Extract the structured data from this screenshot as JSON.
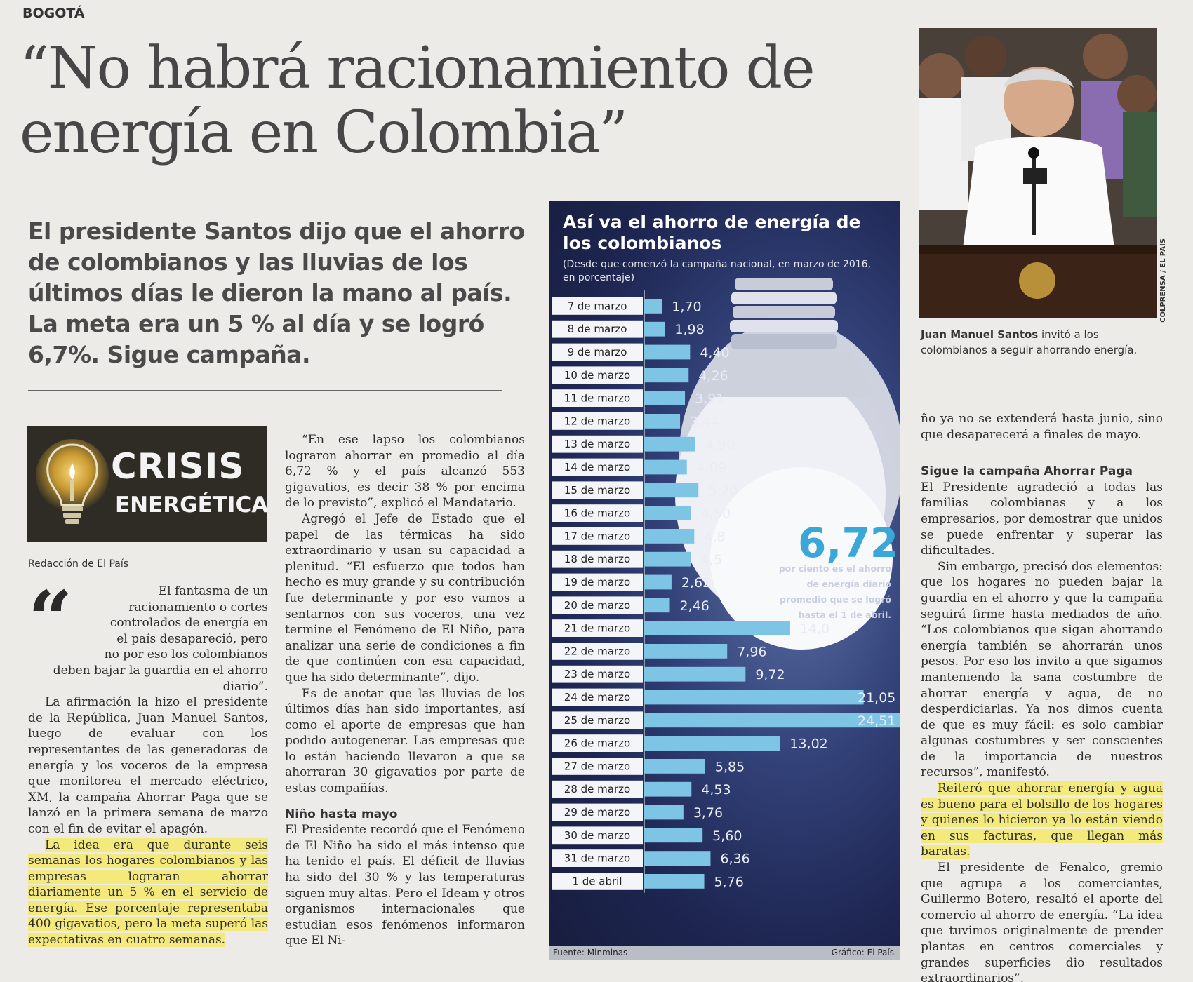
{
  "section": "BOGOTÁ",
  "headline": "“No habrá racionamiento de energía en Colombia”",
  "subhead": "El presidente Santos dijo que el ahorro de colombianos y las lluvias de los últimos días le dieron la mano al país. La meta era un 5 % al día y se logró 6,7%. Sigue campaña.",
  "crisis": {
    "line1": "CRISIS",
    "line2": "ENERGÉTICA"
  },
  "byline": "Redacción de El País",
  "col1": {
    "lead": "El fantasma de un racionamiento o cortes controlados de energía en el país desapareció, pero no por eso los colombianos deben bajar la guardia en el ahorro diario”.",
    "p2": "La afirmación la hizo el presidente de la República, Juan Manuel Santos, luego de evaluar con los representantes de las generadoras de energía y los voceros de la empresa que monitorea el mercado eléctrico, XM, la campaña Ahorrar Paga que se lanzó en la primera semana de marzo con el fin de evitar el apagón.",
    "p3": "La idea era que durante seis semanas los hogares colombianos y las empresas lograran ahorrar diariamente un 5 % en el servicio de energía. Ese porcentaje representaba 400 gigavatios, pero la meta superó las expectativas en cuatro semanas."
  },
  "col2": {
    "p1": "“En ese lapso los colombianos lograron ahorrar en promedio al día 6,72 % y el país alcanzó 553 gigavatios, es decir 38 % por encima de lo previsto”, explicó el Mandatario.",
    "p2": "Agregó el Jefe de Estado que el papel de las térmicas ha sido extraordinario y usan su capacidad a plenitud. “El esfuerzo que todos han hecho es muy grande y su contribución fue determinante y por eso vamos a sentarnos con sus voceros, una vez termine el Fenómeno de El Niño, para analizar una serie de condiciones a fin de que continúen con esa capacidad, que ha sido determinante”, dijo.",
    "p3": "Es de anotar que las lluvias de los últimos días han sido importantes, así como el aporte de empresas que han podido autogenerar. Las empresas que lo están haciendo llevaron a que se ahorraran 30 gigavatios por parte de estas compañías.",
    "subtitle": "Niño hasta mayo",
    "p4": "El Presidente recordó que el Fenómeno de El Niño ha sido el más intenso que ha tenido el país. El déficit de lluvias ha sido del 30 % y las temperaturas siguen muy altas. Pero el Ideam y otros organismos internacionales que estudian esos fenómenos informaron que El Ni-"
  },
  "col3": {
    "p1": "ño ya no se extenderá hasta junio, sino que desaparecerá a finales de mayo.",
    "subtitle": "Sigue la campaña Ahorrar Paga",
    "p2": "El Presidente agradeció a todas las familias colombianas y a los empresarios, por demostrar que unidos se puede enfrentar y superar las dificultades.",
    "p3": "Sin embargo, precisó dos elementos: que los hogares no pueden bajar la guardia en el ahorro y que la campaña seguirá firme hasta mediados de año. “Los colombianos que sigan ahorrando energía también se ahorrarán unos pesos. Por eso los invito a que sigamos manteniendo la sana costumbre de ahorrar energía y agua, de no desperdiciarlas. Ya nos dimos cuenta de que es muy fácil: es solo cambiar algunas costumbres y ser conscientes de la importancia de nuestros recursos”, manifestó.",
    "p4": "Reiteró que ahorrar energía y agua es bueno para el bolsillo de los hogares y quienes lo hicieron ya lo están viendo en sus facturas, que llegan más baratas.",
    "p5": "El presidente de Fenalco, gremio que agrupa a los comerciantes, Guillermo Botero, resaltó el aporte del comercio al ahorro de energía. “La idea que tuvimos originalmente de prender plantas en centros comerciales y grandes superficies dio resultados extraordinarios”."
  },
  "photo": {
    "credit": "COLPRENSA / EL PAÍS",
    "caption_name": "Juan Manuel Santos",
    "caption_rest": " invitó a los colombianos a seguir ahorrando energía."
  },
  "infographic": {
    "title": "Así va el ahorro de energía de los colombianos",
    "note": "(Desde que comenzó la campaña nacional, en marzo de 2016, en porcentaje)",
    "big_value": "6,72",
    "big_text": "por ciento es el ahorro de energía diario promedio que se logró hasta el 1 de abril.",
    "source": "Fuente: Minminas",
    "graphic": "Gráfico: El País",
    "bar_color": "#7ec4e4",
    "value_color": "#e9ecf4"
  },
  "chart_data": {
    "type": "bar",
    "orientation": "horizontal",
    "categories": [
      "7 de marzo",
      "8 de marzo",
      "9 de marzo",
      "10 de marzo",
      "11 de marzo",
      "12 de marzo",
      "13 de marzo",
      "14 de marzo",
      "15 de marzo",
      "16 de marzo",
      "17 de marzo",
      "18 de marzo",
      "19 de marzo",
      "20 de marzo",
      "21 de marzo",
      "22 de marzo",
      "23 de marzo",
      "24 de marzo",
      "25 de marzo",
      "26 de marzo",
      "27 de marzo",
      "28 de marzo",
      "29 de marzo",
      "30 de marzo",
      "31 de marzo",
      "1 de abril"
    ],
    "values": [
      1.7,
      1.98,
      4.4,
      4.26,
      3.91,
      3.44,
      4.9,
      4.09,
      5.2,
      4.5,
      4.8,
      4.5,
      2.62,
      2.46,
      14.0,
      7.96,
      9.72,
      21.05,
      24.51,
      13.02,
      5.85,
      4.53,
      3.76,
      5.6,
      6.36,
      5.76
    ],
    "labels": [
      "1,70",
      "1,98",
      "4,40",
      "4,26",
      "3,91",
      "3,44",
      "4,90",
      "4,09",
      "5,20",
      "4,50",
      "4,8",
      "4,5",
      "2,62",
      "2,46",
      "14,0",
      "7,96",
      "9,72",
      "21,05",
      "24,51",
      "13,02",
      "5,85",
      "4,53",
      "3,76",
      "5,60",
      "6,36",
      "5,76"
    ],
    "title": "Así va el ahorro de energía de los colombianos",
    "xlim": [
      0,
      24.51
    ]
  }
}
